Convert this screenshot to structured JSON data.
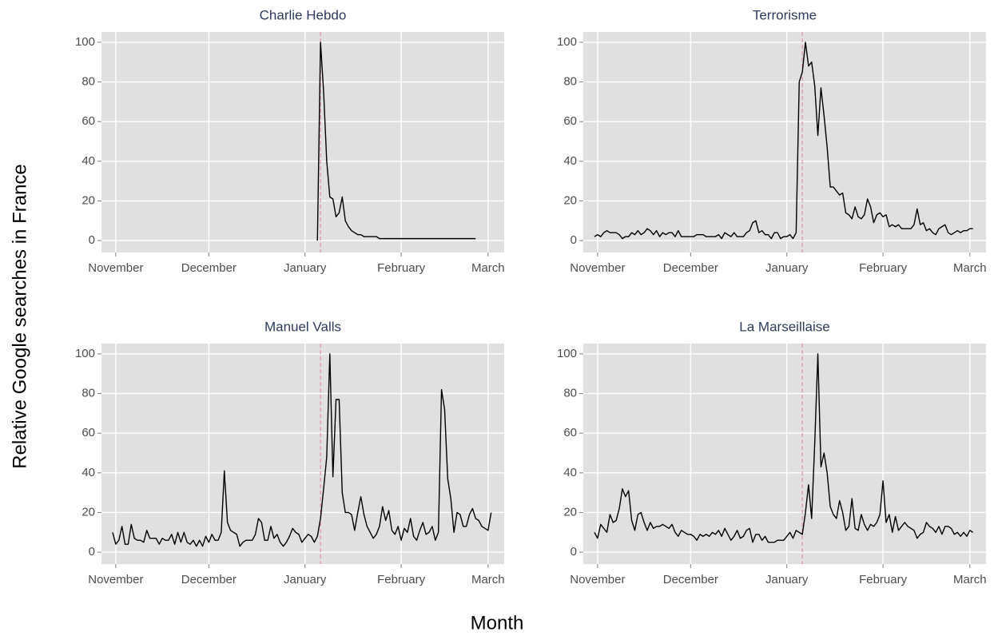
{
  "chart_data": {
    "type": "line",
    "facets": true,
    "x_label": "Month",
    "y_label": "Relative Google searches in France",
    "x": [
      -1,
      0,
      1,
      2,
      3,
      4,
      5,
      6,
      7,
      8,
      9,
      10,
      11,
      12,
      13,
      14,
      15,
      16,
      17,
      18,
      19,
      20,
      21,
      22,
      23,
      24,
      25,
      26,
      27,
      28,
      29,
      30,
      31,
      32,
      33,
      34,
      35,
      36,
      37,
      38,
      39,
      40,
      41,
      42,
      43,
      44,
      45,
      46,
      47,
      48,
      49,
      50,
      51,
      52,
      53,
      54,
      55,
      56,
      57,
      58,
      59,
      60,
      61,
      62,
      63,
      64,
      65,
      66,
      67,
      68,
      69,
      70,
      71,
      72,
      73,
      74,
      75,
      76,
      77,
      78,
      79,
      80,
      81,
      82,
      83,
      84,
      85,
      86,
      87,
      88,
      89,
      90,
      91,
      92,
      93,
      94,
      95,
      96,
      97,
      98,
      99,
      100,
      101,
      102,
      103,
      104,
      105,
      106,
      107,
      108,
      109,
      110,
      111,
      112,
      113,
      114,
      115,
      116,
      117,
      118,
      119,
      120,
      121
    ],
    "xlim": [
      -4.6,
      125.2
    ],
    "xticks": [
      {
        "value": 0,
        "label": "November"
      },
      {
        "value": 30,
        "label": "December"
      },
      {
        "value": 61,
        "label": "January"
      },
      {
        "value": 92,
        "label": "February"
      },
      {
        "value": 120,
        "label": "March"
      }
    ],
    "ylim": [
      -6,
      105.2
    ],
    "yticks": [
      0,
      20,
      40,
      60,
      80,
      100
    ],
    "grid": true,
    "vline": 66,
    "vline_color": "#d9849a",
    "series": [
      {
        "name": "Charlie Hebdo",
        "color": "#000000",
        "values": [
          null,
          null,
          null,
          null,
          null,
          null,
          null,
          null,
          null,
          null,
          null,
          null,
          null,
          null,
          null,
          null,
          null,
          null,
          null,
          null,
          null,
          null,
          null,
          null,
          null,
          null,
          null,
          null,
          null,
          null,
          null,
          null,
          null,
          null,
          null,
          null,
          null,
          null,
          null,
          null,
          null,
          null,
          null,
          null,
          null,
          null,
          null,
          null,
          null,
          null,
          null,
          null,
          null,
          null,
          null,
          null,
          null,
          null,
          null,
          null,
          null,
          null,
          null,
          null,
          null,
          null,
          0,
          100,
          75,
          40,
          22,
          21,
          12,
          14,
          22,
          10,
          7,
          5,
          4,
          3,
          3,
          2,
          2,
          2,
          2,
          2,
          1,
          1,
          1,
          1,
          1,
          1,
          1,
          1,
          1,
          1,
          1,
          1,
          1,
          1,
          1,
          1,
          1,
          1,
          1,
          1,
          1,
          1,
          1,
          1,
          1,
          1,
          1,
          1,
          1,
          1,
          1,
          1,
          null,
          null,
          null,
          null,
          null
        ]
      },
      {
        "name": "Terrorisme",
        "color": "#000000",
        "values": [
          2,
          3,
          2,
          4,
          5,
          4,
          4,
          4,
          3,
          1,
          2,
          2,
          4,
          3,
          5,
          3,
          4,
          6,
          5,
          3,
          5,
          2,
          4,
          3,
          4,
          4,
          2,
          5,
          2,
          2,
          2,
          2,
          2,
          3,
          3,
          3,
          2,
          2,
          2,
          2,
          3,
          1,
          4,
          3,
          2,
          4,
          2,
          2,
          2,
          4,
          5,
          9,
          10,
          4,
          5,
          3,
          3,
          1,
          4,
          4,
          1,
          2,
          2,
          3,
          1,
          4,
          80,
          85,
          100,
          88,
          90,
          78,
          53,
          77,
          63,
          47,
          27,
          27,
          25,
          23,
          24,
          14,
          13,
          11,
          17,
          12,
          11,
          13,
          21,
          17,
          9,
          13,
          14,
          12,
          13,
          7,
          8,
          7,
          8,
          6,
          6,
          6,
          6,
          8,
          16,
          8,
          9,
          5,
          6,
          4,
          3,
          6,
          7,
          8,
          4,
          3,
          4,
          5,
          4,
          5,
          5,
          6,
          6
        ]
      },
      {
        "name": "Manuel Valls",
        "color": "#000000",
        "values": [
          10,
          4,
          6,
          13,
          4,
          4,
          14,
          7,
          6,
          6,
          5,
          11,
          7,
          7,
          7,
          4,
          7,
          6,
          6,
          9,
          4,
          10,
          5,
          10,
          5,
          4,
          6,
          3,
          6,
          3,
          8,
          5,
          9,
          6,
          6,
          10,
          41,
          15,
          11,
          10,
          9,
          3,
          5,
          6,
          6,
          6,
          9,
          17,
          15,
          6,
          6,
          13,
          7,
          9,
          5,
          3,
          5,
          8,
          12,
          10,
          9,
          5,
          7,
          9,
          8,
          5,
          8,
          17,
          32,
          48,
          100,
          38,
          77,
          77,
          30,
          20,
          20,
          19,
          11,
          20,
          28,
          19,
          13,
          10,
          7,
          9,
          13,
          23,
          16,
          21,
          11,
          9,
          13,
          6,
          12,
          10,
          17,
          8,
          6,
          11,
          15,
          9,
          10,
          13,
          6,
          10,
          82,
          72,
          37,
          27,
          10,
          20,
          19,
          13,
          13,
          19,
          22,
          17,
          16,
          13,
          12,
          11,
          20
        ]
      },
      {
        "name": "La Marseillaise",
        "color": "#000000",
        "values": [
          10,
          7,
          14,
          12,
          10,
          19,
          15,
          16,
          22,
          32,
          28,
          31,
          16,
          11,
          19,
          20,
          15,
          11,
          15,
          12,
          13,
          13,
          14,
          13,
          12,
          14,
          10,
          8,
          11,
          10,
          9,
          9,
          8,
          6,
          9,
          8,
          9,
          8,
          10,
          9,
          11,
          8,
          12,
          9,
          6,
          8,
          11,
          7,
          8,
          11,
          12,
          5,
          9,
          9,
          6,
          8,
          5,
          5,
          5,
          6,
          6,
          6,
          8,
          10,
          7,
          11,
          10,
          9,
          20,
          34,
          17,
          55,
          100,
          43,
          50,
          40,
          23,
          19,
          17,
          26,
          20,
          11,
          13,
          27,
          12,
          11,
          19,
          14,
          11,
          14,
          13,
          15,
          19,
          36,
          15,
          19,
          10,
          18,
          11,
          13,
          15,
          13,
          12,
          11,
          7,
          9,
          10,
          15,
          13,
          12,
          10,
          13,
          9,
          13,
          13,
          12,
          9,
          10,
          8,
          10,
          8,
          11,
          10
        ]
      }
    ]
  }
}
